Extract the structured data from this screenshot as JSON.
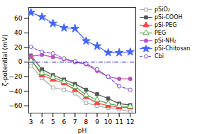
{
  "chart_data": {
    "type": "line",
    "xlabel": "pH",
    "ylabel": "ζ-potential (mV)",
    "x": [
      3,
      4,
      5,
      6,
      7,
      8,
      9,
      10,
      11,
      12
    ],
    "series": [
      {
        "name": "pSiO₂",
        "color": "#aaaaaa",
        "marker": "open-square",
        "line_style": "solid",
        "values": [
          -5,
          -22,
          -35,
          -38,
          -43,
          -56,
          -60,
          -63,
          -65,
          -68
        ]
      },
      {
        "name": "pSi-COOH",
        "color": "#555555",
        "marker": "square",
        "line_style": "solid",
        "values": [
          9,
          -10,
          -18,
          -24,
          -30,
          -38,
          -44,
          -50,
          -57,
          -59
        ]
      },
      {
        "name": "pSi-PEG",
        "color": "#ff4444",
        "marker": "triangle",
        "line_style": "solid",
        "values": [
          4,
          -18,
          -24,
          -29,
          -38,
          -48,
          -56,
          -60,
          -62,
          -62
        ]
      },
      {
        "name": "PEG",
        "color": "#44aa44",
        "marker": "open-triangle",
        "line_style": "solid",
        "values": [
          2,
          -15,
          -21,
          -27,
          -34,
          -45,
          -52,
          -57,
          -60,
          -61
        ]
      },
      {
        "name": "pSi-NH₂",
        "color": "#bb55bb",
        "marker": "circle",
        "line_style": "solid",
        "values": [
          8,
          10,
          7,
          4,
          0,
          -3,
          -12,
          -20,
          -23,
          -23
        ]
      },
      {
        "name": "pSi-Chitosan",
        "color": "#4466ff",
        "marker": "star",
        "line_style": "solid",
        "values": [
          68,
          62,
          53,
          47,
          46,
          29,
          22,
          13,
          13,
          14
        ]
      },
      {
        "name": "Cbi",
        "color": "#7755cc",
        "marker": "open-circle",
        "line_style": "dashed",
        "values": [
          21,
          14,
          12,
          5,
          1,
          -2,
          -10,
          -20,
          -33,
          -38
        ]
      }
    ],
    "hlines": [
      {
        "y": 0,
        "color": "#0000cc",
        "line_style": "dashdot"
      }
    ],
    "xlim": [
      2.8,
      12.5
    ],
    "ylim": [
      -70,
      75
    ],
    "xticks": [
      3,
      4,
      5,
      6,
      7,
      8,
      9,
      10,
      11,
      12
    ],
    "yticks": [
      -60,
      -40,
      -20,
      0,
      20,
      40,
      60
    ],
    "legend": "right"
  }
}
